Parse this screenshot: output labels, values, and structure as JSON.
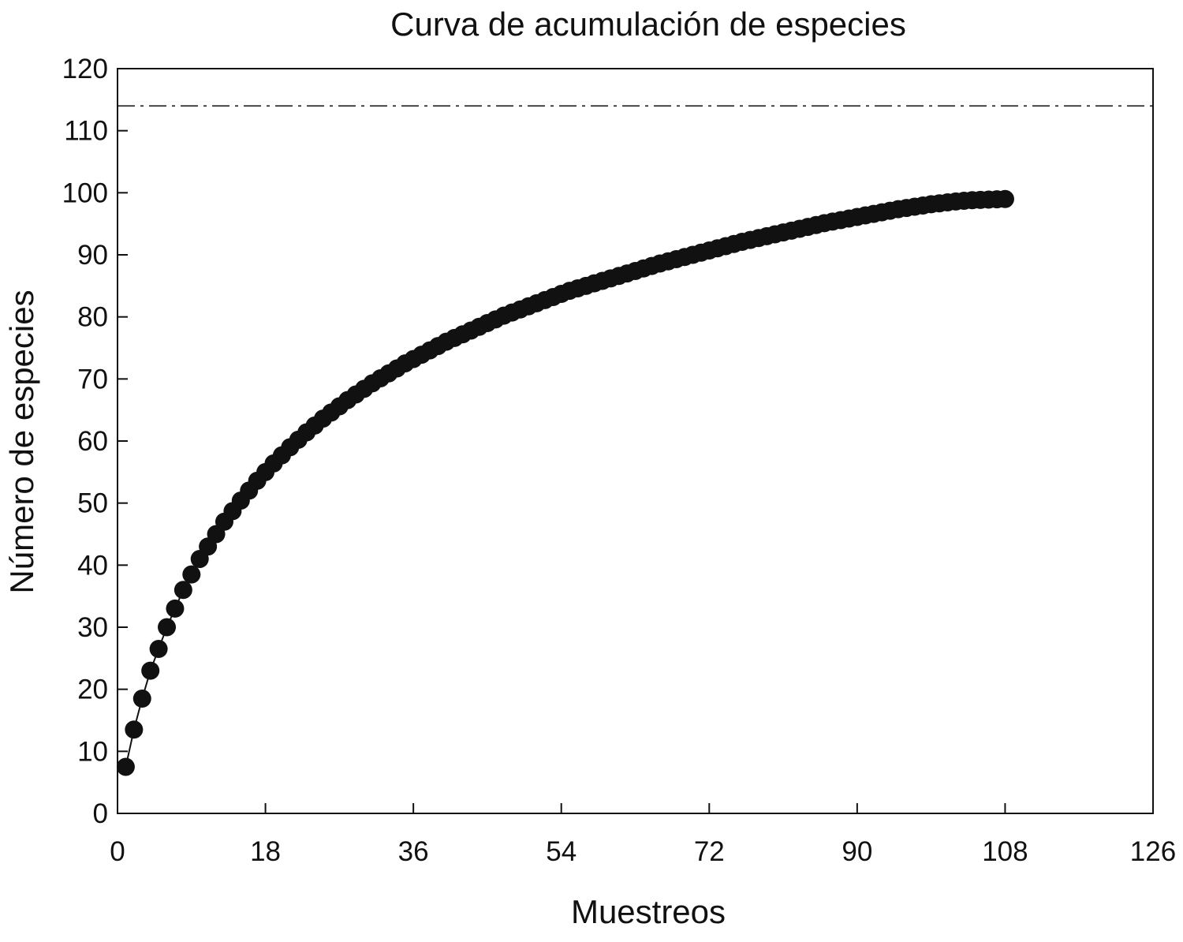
{
  "chart_data": {
    "type": "scatter",
    "title": "Curva de acumulación de especies",
    "xlabel": "Muestreos",
    "ylabel": "Número de especies",
    "xlim": [
      0,
      126
    ],
    "ylim": [
      0,
      120
    ],
    "xticks": [
      0,
      18,
      36,
      54,
      72,
      90,
      108,
      126
    ],
    "yticks": [
      0,
      10,
      20,
      30,
      40,
      50,
      60,
      70,
      80,
      90,
      100,
      110,
      120
    ],
    "grid": false,
    "reference_line": {
      "style": "dash-dot",
      "y": 114
    },
    "series": [
      {
        "marker": "filled-circle",
        "connected": true,
        "color": "#111111",
        "x": [
          1,
          2,
          3,
          4,
          5,
          6,
          7,
          8,
          9,
          10,
          11,
          12,
          13,
          14,
          15,
          16,
          17,
          18,
          19,
          20,
          21,
          22,
          23,
          24,
          25,
          26,
          27,
          28,
          29,
          30,
          31,
          32,
          33,
          34,
          35,
          36,
          37,
          38,
          39,
          40,
          41,
          42,
          43,
          44,
          45,
          46,
          47,
          48,
          49,
          50,
          51,
          52,
          53,
          54,
          55,
          56,
          57,
          58,
          59,
          60,
          61,
          62,
          63,
          64,
          65,
          66,
          67,
          68,
          69,
          70,
          71,
          72,
          73,
          74,
          75,
          76,
          77,
          78,
          79,
          80,
          81,
          82,
          83,
          84,
          85,
          86,
          87,
          88,
          89,
          90,
          91,
          92,
          93,
          94,
          95,
          96,
          97,
          98,
          99,
          100,
          101,
          102,
          103,
          104,
          105,
          106,
          107,
          108
        ],
        "y": [
          7.5,
          13.5,
          18.5,
          23,
          26.5,
          30,
          33,
          36,
          38.5,
          41,
          43,
          45,
          47,
          48.7,
          50.4,
          52,
          53.6,
          55,
          56.4,
          57.7,
          59,
          60.2,
          61.4,
          62.5,
          63.6,
          64.6,
          65.6,
          66.6,
          67.5,
          68.4,
          69.3,
          70.1,
          70.9,
          71.7,
          72.5,
          73.2,
          73.9,
          74.6,
          75.3,
          76,
          76.6,
          77.2,
          77.8,
          78.4,
          79,
          79.6,
          80.2,
          80.7,
          81.2,
          81.7,
          82.2,
          82.7,
          83.2,
          83.7,
          84.2,
          84.6,
          85,
          85.4,
          85.8,
          86.2,
          86.6,
          87,
          87.4,
          87.8,
          88.2,
          88.6,
          88.95,
          89.3,
          89.65,
          90,
          90.35,
          90.7,
          91.05,
          91.4,
          91.75,
          92.1,
          92.4,
          92.7,
          93,
          93.3,
          93.6,
          93.9,
          94.2,
          94.5,
          94.8,
          95.1,
          95.35,
          95.6,
          95.85,
          96.1,
          96.35,
          96.6,
          96.85,
          97.1,
          97.35,
          97.55,
          97.75,
          97.95,
          98.15,
          98.3,
          98.45,
          98.6,
          98.7,
          98.8,
          98.85,
          98.9,
          98.95,
          99
        ]
      }
    ]
  }
}
